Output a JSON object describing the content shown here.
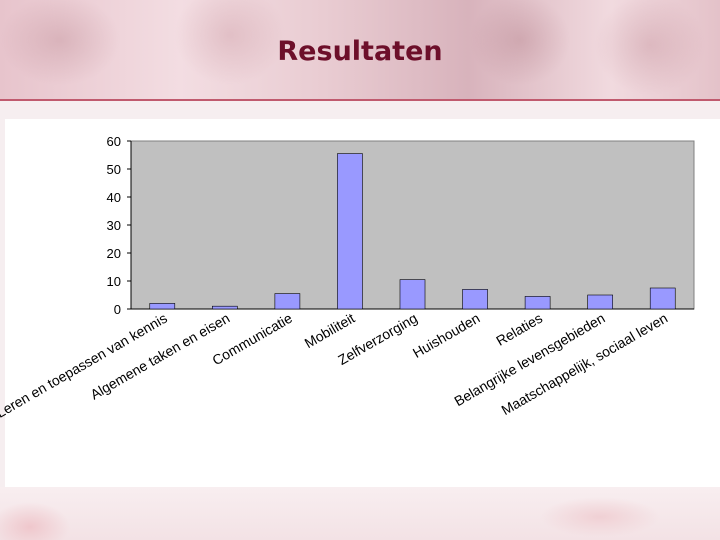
{
  "page": {
    "title": "Resultaten"
  },
  "chart_data": {
    "type": "bar",
    "categories": [
      "Leren en toepassen van kennis",
      "Algemene taken en eisen",
      "Communicatie",
      "Mobiliteit",
      "Zelfverzorging",
      "Huishouden",
      "Relaties",
      "Belangrijke levensgebieden",
      "Maatschappelijk, sociaal leven"
    ],
    "values": [
      2,
      1,
      5.5,
      55.5,
      10.5,
      7,
      4.5,
      5,
      7.5
    ],
    "ylim": [
      0,
      60
    ],
    "yticks": [
      0,
      10,
      20,
      30,
      40,
      50,
      60
    ],
    "grid": false,
    "colors": {
      "bar": "#9999ff",
      "plot_bg": "#c0c0c0"
    }
  }
}
